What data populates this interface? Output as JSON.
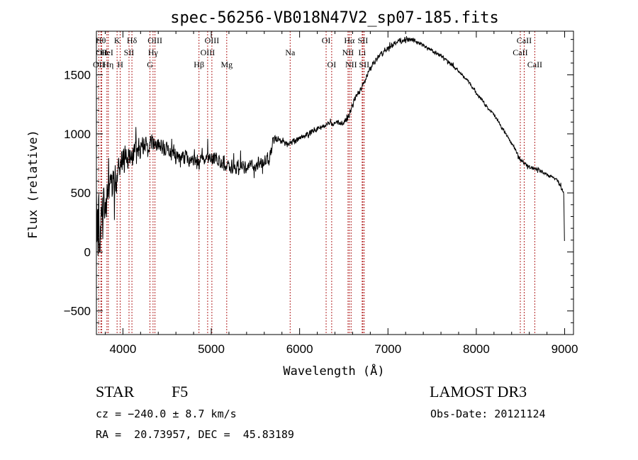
{
  "chart_data": {
    "type": "line",
    "title": "spec-56256-VB018N47V2_sp07-185.fits",
    "xlabel": "Wavelength (Å)",
    "ylabel": "Flux (relative)",
    "xlim": [
      3700,
      9100
    ],
    "ylim": [
      -700,
      1870
    ],
    "xticks": [
      4000,
      5000,
      6000,
      7000,
      8000,
      9000
    ],
    "yticks": [
      -500,
      0,
      500,
      1000,
      1500
    ],
    "grid": false,
    "series": [
      {
        "name": "flux",
        "anchors_x": [
          3700,
          3720,
          3740,
          3760,
          3780,
          3800,
          3830,
          3860,
          3900,
          3950,
          4000,
          4050,
          4100,
          4150,
          4200,
          4250,
          4300,
          4350,
          4400,
          4500,
          4600,
          4700,
          4800,
          4860,
          4900,
          5000,
          5100,
          5200,
          5300,
          5400,
          5500,
          5600,
          5650,
          5700,
          5800,
          5900,
          6000,
          6100,
          6200,
          6300,
          6400,
          6500,
          6560,
          6600,
          6700,
          6800,
          6900,
          7000,
          7100,
          7200,
          7300,
          7400,
          7500,
          7600,
          7700,
          7800,
          7900,
          8000,
          8100,
          8200,
          8300,
          8400,
          8500,
          8600,
          8700,
          8800,
          8900,
          8950,
          8990,
          9000
        ],
        "anchors_y": [
          300,
          150,
          200,
          250,
          350,
          400,
          480,
          520,
          620,
          700,
          780,
          820,
          850,
          870,
          880,
          890,
          900,
          905,
          900,
          860,
          820,
          800,
          780,
          760,
          780,
          800,
          760,
          720,
          720,
          720,
          730,
          760,
          780,
          950,
          940,
          920,
          960,
          1000,
          1050,
          1080,
          1090,
          1100,
          1140,
          1250,
          1400,
          1560,
          1660,
          1730,
          1780,
          1800,
          1790,
          1750,
          1700,
          1660,
          1600,
          1530,
          1450,
          1350,
          1250,
          1160,
          1040,
          920,
          780,
          720,
          700,
          650,
          620,
          560,
          500,
          0
        ],
        "noise_amplitude": [
          900,
          900,
          700,
          500,
          500,
          500,
          450,
          420,
          380,
          340,
          300,
          280,
          260,
          240,
          220,
          220,
          200,
          200,
          190,
          180,
          170,
          160,
          160,
          180,
          160,
          150,
          150,
          150,
          150,
          150,
          150,
          160,
          200,
          90,
          80,
          70,
          60,
          60,
          60,
          60,
          60,
          70,
          100,
          80,
          70,
          60,
          60,
          60,
          60,
          60,
          50,
          50,
          45,
          40,
          40,
          40,
          40,
          40,
          35,
          35,
          35,
          35,
          35,
          35,
          35,
          35,
          40,
          40,
          40,
          40
        ]
      }
    ],
    "lines": [
      {
        "name": "OII",
        "x": 3727,
        "row": 2
      },
      {
        "name": "Hθ",
        "x": 3750,
        "row": 0
      },
      {
        "name": "OII",
        "x": 3760,
        "row": 1
      },
      {
        "name": "HeI",
        "x": 3819,
        "row": 1
      },
      {
        "name": "Hη",
        "x": 3835,
        "row": 2
      },
      {
        "name": "K",
        "x": 3934,
        "row": 0
      },
      {
        "name": "H",
        "x": 3969,
        "row": 2
      },
      {
        "name": "SII",
        "x": 4069,
        "row": 1
      },
      {
        "name": "Hδ",
        "x": 4102,
        "row": 0
      },
      {
        "name": "G",
        "x": 4306,
        "row": 2
      },
      {
        "name": "Hγ",
        "x": 4341,
        "row": 1
      },
      {
        "name": "OIII",
        "x": 4363,
        "row": 0
      },
      {
        "name": "Hβ",
        "x": 4861,
        "row": 2
      },
      {
        "name": "OIII",
        "x": 4959,
        "row": 1
      },
      {
        "name": "OIII",
        "x": 5007,
        "row": 0
      },
      {
        "name": "Mg",
        "x": 5175,
        "row": 2
      },
      {
        "name": "Na",
        "x": 5893,
        "row": 1
      },
      {
        "name": "OI",
        "x": 6300,
        "row": 0
      },
      {
        "name": "OI",
        "x": 6363,
        "row": 2
      },
      {
        "name": "NII",
        "x": 6548,
        "row": 1
      },
      {
        "name": "Hα",
        "x": 6563,
        "row": 0
      },
      {
        "name": "NII",
        "x": 6583,
        "row": 2
      },
      {
        "name": "SII",
        "x": 6716,
        "row": 0
      },
      {
        "name": "Li",
        "x": 6708,
        "row": 1
      },
      {
        "name": "SII",
        "x": 6731,
        "row": 2
      },
      {
        "name": "CaII",
        "x": 8498,
        "row": 1
      },
      {
        "name": "CaII",
        "x": 8542,
        "row": 0
      },
      {
        "name": "CaII",
        "x": 8662,
        "row": 2
      }
    ]
  },
  "info": {
    "object_class": "STAR",
    "subclass": "F5",
    "survey": "LAMOST DR3",
    "redshift": "cz = −240.0 ± 8.7 km/s",
    "obs_date": "Obs-Date: 20121124",
    "coords": "RA =  20.73957, DEC =  45.83189"
  }
}
